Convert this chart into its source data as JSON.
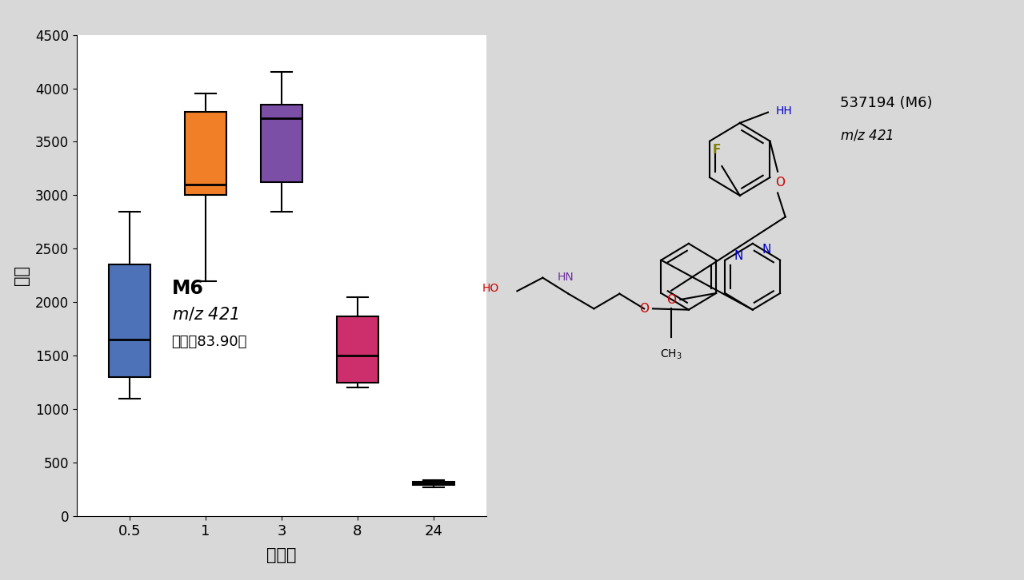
{
  "timepoints": [
    "0.5",
    "1",
    "3",
    "8",
    "24"
  ],
  "box_data": [
    {
      "whislo": 1100,
      "q1": 1300,
      "med": 1650,
      "q3": 2350,
      "whishi": 2850
    },
    {
      "whislo": 2200,
      "q1": 3000,
      "med": 3100,
      "q3": 3780,
      "whishi": 3950
    },
    {
      "whislo": 2850,
      "q1": 3120,
      "med": 3720,
      "q3": 3850,
      "whishi": 4150
    },
    {
      "whislo": 1200,
      "q1": 1250,
      "med": 1500,
      "q3": 1870,
      "whishi": 2050
    },
    {
      "whislo": 270,
      "q1": 290,
      "med": 305,
      "q3": 320,
      "whishi": 335
    }
  ],
  "box_colors": [
    "#4e72b8",
    "#f07f28",
    "#7b4fa6",
    "#cc2f6b",
    "#2a2a2a"
  ],
  "ylabel": "丰度",
  "xlabel": "时间点",
  "ylim": [
    0,
    4500
  ],
  "yticks": [
    0,
    500,
    1000,
    1500,
    2000,
    2500,
    3000,
    3500,
    4000,
    4500
  ],
  "annot_bold": "M6",
  "annot_italic": "m/z 421",
  "annot_normal": "（得刈83.90）",
  "bg_color": "#d8d8d8",
  "plot_bg_color": "#ffffff",
  "struct_label1": "537194 (M6)",
  "struct_label2": "m/z 421"
}
